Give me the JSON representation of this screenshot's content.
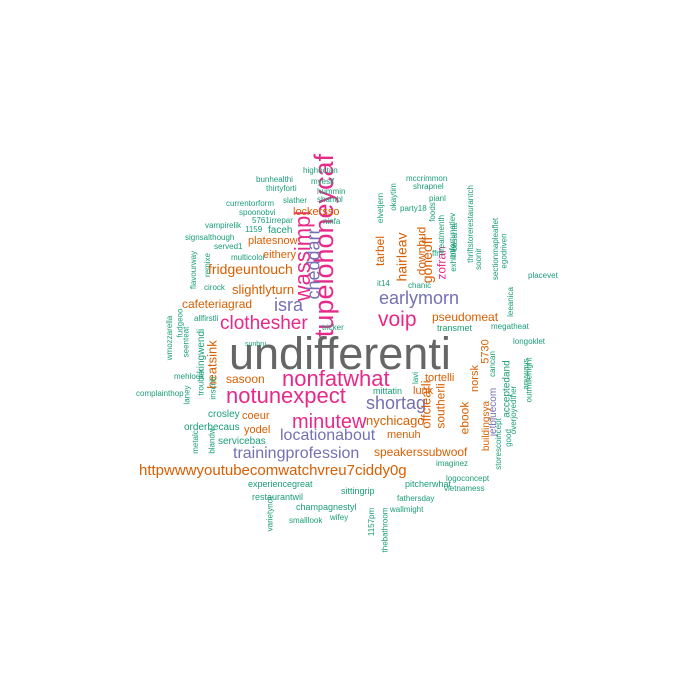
{
  "colors": {
    "gray": "#666666",
    "pink": "#e7298a",
    "purple": "#7570b3",
    "orange": "#d95f02",
    "teal": "#1b9e77"
  },
  "words": [
    {
      "text": "undifferenti",
      "color": "gray"
    },
    {
      "text": "tupelohoneycaf",
      "color": "pink"
    },
    {
      "text": "wassimpl",
      "color": "pink"
    },
    {
      "text": "nonfatwhat",
      "color": "pink"
    },
    {
      "text": "notunexpect",
      "color": "pink"
    },
    {
      "text": "clothesher",
      "color": "pink"
    },
    {
      "text": "voip",
      "color": "pink"
    },
    {
      "text": "minutew",
      "color": "pink"
    },
    {
      "text": "earlymorn",
      "color": "purple"
    },
    {
      "text": "cheddarr",
      "color": "purple"
    },
    {
      "text": "isra",
      "color": "purple"
    },
    {
      "text": "shortag",
      "color": "purple"
    },
    {
      "text": "locationabout",
      "color": "purple"
    },
    {
      "text": "trainingprofession",
      "color": "purple"
    },
    {
      "text": "httpwwwyoutubecomwatchvreu7ciddy0g",
      "color": "orange"
    },
    {
      "text": "fridgeuntouch",
      "color": "orange"
    },
    {
      "text": "slightlyturn",
      "color": "orange"
    },
    {
      "text": "cafeteriagrad",
      "color": "orange"
    },
    {
      "text": "heatsink",
      "color": "orange"
    },
    {
      "text": "sasoon",
      "color": "orange"
    },
    {
      "text": "coeur",
      "color": "orange"
    },
    {
      "text": "yodel",
      "color": "orange"
    },
    {
      "text": "servicebas",
      "color": "teal"
    },
    {
      "text": "platesnow",
      "color": "orange"
    },
    {
      "text": "eithery",
      "color": "orange"
    },
    {
      "text": "lockersso",
      "color": "orange"
    },
    {
      "text": "tarbel",
      "color": "orange"
    },
    {
      "text": "hairleav",
      "color": "orange"
    },
    {
      "text": "downbud",
      "color": "orange"
    },
    {
      "text": "goneoff",
      "color": "orange"
    },
    {
      "text": "zofran",
      "color": "pink"
    },
    {
      "text": "pseudomeat",
      "color": "orange"
    },
    {
      "text": "lunk",
      "color": "orange"
    },
    {
      "text": "tortelli",
      "color": "orange"
    },
    {
      "text": "nychicago",
      "color": "orange"
    },
    {
      "text": "menuh",
      "color": "orange"
    },
    {
      "text": "speakerssubwoof",
      "color": "orange"
    },
    {
      "text": "offclearli",
      "color": "orange"
    },
    {
      "text": "southerli",
      "color": "orange"
    },
    {
      "text": "ebook",
      "color": "orange"
    },
    {
      "text": "norsk",
      "color": "orange"
    },
    {
      "text": "5730",
      "color": "orange"
    },
    {
      "text": "buildingsya",
      "color": "orange"
    },
    {
      "text": "jetbluecom",
      "color": "purple"
    },
    {
      "text": "acceptedand",
      "color": "teal"
    },
    {
      "text": "kingwendi",
      "color": "teal"
    },
    {
      "text": "faceh",
      "color": "teal"
    },
    {
      "text": "crosley",
      "color": "teal"
    },
    {
      "text": "orderbecaus",
      "color": "teal"
    },
    {
      "text": "experiencegreat",
      "color": "teal"
    },
    {
      "text": "restaurantwil",
      "color": "teal"
    },
    {
      "text": "sittingrip",
      "color": "teal"
    },
    {
      "text": "pitcherwhat",
      "color": "teal"
    },
    {
      "text": "champagnestyl",
      "color": "teal"
    },
    {
      "text": "fathersday",
      "color": "teal"
    },
    {
      "text": "wallmight",
      "color": "teal"
    },
    {
      "text": "wifey",
      "color": "teal"
    },
    {
      "text": "smalllook",
      "color": "teal"
    },
    {
      "text": "1157pm",
      "color": "teal"
    },
    {
      "text": "thebathroom",
      "color": "teal"
    },
    {
      "text": "varietynot",
      "color": "teal"
    },
    {
      "text": "vietnamess",
      "color": "teal"
    },
    {
      "text": "logoconcept",
      "color": "teal"
    },
    {
      "text": "imaginez",
      "color": "teal"
    },
    {
      "text": "storescoincept",
      "color": "teal"
    },
    {
      "text": "good",
      "color": "teal"
    },
    {
      "text": "overjoyedther",
      "color": "teal"
    },
    {
      "text": "outmillenight",
      "color": "teal"
    },
    {
      "text": "anyways",
      "color": "teal"
    },
    {
      "text": "cancan",
      "color": "teal"
    },
    {
      "text": "longoklet",
      "color": "teal"
    },
    {
      "text": "megatheat",
      "color": "teal"
    },
    {
      "text": "transmet",
      "color": "teal"
    },
    {
      "text": "leeanica",
      "color": "teal"
    },
    {
      "text": "placevet",
      "color": "teal"
    },
    {
      "text": "sectionmapleaflet",
      "color": "teal"
    },
    {
      "text": "soonir",
      "color": "teal"
    },
    {
      "text": "egodriven",
      "color": "teal"
    },
    {
      "text": "thriftstorerestaurantch",
      "color": "teal"
    },
    {
      "text": "unfortunatlev",
      "color": "teal"
    },
    {
      "text": "treatmenth",
      "color": "teal"
    },
    {
      "text": "casarita",
      "color": "teal"
    },
    {
      "text": "exhibite",
      "color": "teal"
    },
    {
      "text": "pianl",
      "color": "teal"
    },
    {
      "text": "party18",
      "color": "teal"
    },
    {
      "text": "shrapnel",
      "color": "teal"
    },
    {
      "text": "mccrimmon",
      "color": "teal"
    },
    {
      "text": "foods",
      "color": "teal"
    },
    {
      "text": "ffm",
      "color": "teal"
    },
    {
      "text": "chanic",
      "color": "teal"
    },
    {
      "text": "okaytim",
      "color": "teal"
    },
    {
      "text": "elvetjern",
      "color": "teal"
    },
    {
      "text": "it14",
      "color": "teal"
    },
    {
      "text": "mittatin",
      "color": "teal"
    },
    {
      "text": "lavi",
      "color": "teal"
    },
    {
      "text": "tricker",
      "color": "teal"
    },
    {
      "text": "sunbru",
      "color": "teal"
    },
    {
      "text": "highoctan",
      "color": "teal"
    },
    {
      "text": "bunhealthi",
      "color": "teal"
    },
    {
      "text": "myeslf",
      "color": "teal"
    },
    {
      "text": "thirtyforti",
      "color": "teal"
    },
    {
      "text": "hummin",
      "color": "teal"
    },
    {
      "text": "shambl",
      "color": "teal"
    },
    {
      "text": "currentorform",
      "color": "teal"
    },
    {
      "text": "slather",
      "color": "teal"
    },
    {
      "text": "spoonobvi",
      "color": "teal"
    },
    {
      "text": "5761irrepar",
      "color": "teal"
    },
    {
      "text": "ninfa",
      "color": "teal"
    },
    {
      "text": "vampirelik",
      "color": "teal"
    },
    {
      "text": "1159",
      "color": "teal"
    },
    {
      "text": "signsalthough",
      "color": "teal"
    },
    {
      "text": "served1",
      "color": "teal"
    },
    {
      "text": "multicolor",
      "color": "teal"
    },
    {
      "text": "cirock",
      "color": "teal"
    },
    {
      "text": "allfirstli",
      "color": "teal"
    },
    {
      "text": "remixe",
      "color": "teal"
    },
    {
      "text": "flavourway",
      "color": "teal"
    },
    {
      "text": "wmozzarella",
      "color": "teal"
    },
    {
      "text": "fudgeoo",
      "color": "teal"
    },
    {
      "text": "seenteat",
      "color": "teal"
    },
    {
      "text": "mehlook",
      "color": "teal"
    },
    {
      "text": "laney",
      "color": "teal"
    },
    {
      "text": "complainthop",
      "color": "teal"
    },
    {
      "text": "troubler",
      "color": "teal"
    },
    {
      "text": "metalc",
      "color": "teal"
    },
    {
      "text": "blandw",
      "color": "teal"
    },
    {
      "text": "inscrib",
      "color": "teal"
    }
  ]
}
